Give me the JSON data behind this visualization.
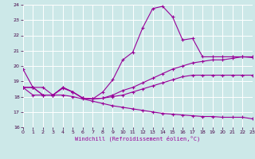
{
  "xlabel": "Windchill (Refroidissement éolien,°C)",
  "xlim": [
    0,
    23
  ],
  "ylim": [
    16,
    24
  ],
  "yticks": [
    16,
    17,
    18,
    19,
    20,
    21,
    22,
    23,
    24
  ],
  "xticks": [
    0,
    1,
    2,
    3,
    4,
    5,
    6,
    7,
    8,
    9,
    10,
    11,
    12,
    13,
    14,
    15,
    16,
    17,
    18,
    19,
    20,
    21,
    22,
    23
  ],
  "bg_color": "#cce8e8",
  "line_color": "#990099",
  "grid_color": "#ffffff",
  "line1_y": [
    19.8,
    18.6,
    18.6,
    18.1,
    18.6,
    18.3,
    17.9,
    17.85,
    18.3,
    19.1,
    20.4,
    20.9,
    22.5,
    23.75,
    23.9,
    23.2,
    21.7,
    21.8,
    20.6,
    20.6,
    20.6,
    20.6,
    20.6,
    20.6
  ],
  "line2_y": [
    18.6,
    18.6,
    18.1,
    18.1,
    18.6,
    18.3,
    17.9,
    17.85,
    17.9,
    18.1,
    18.4,
    18.6,
    18.9,
    19.2,
    19.5,
    19.8,
    20.0,
    20.2,
    20.3,
    20.4,
    20.4,
    20.5,
    20.6,
    20.55
  ],
  "line3_y": [
    18.6,
    18.6,
    18.1,
    18.1,
    18.55,
    18.3,
    17.9,
    17.85,
    17.9,
    18.0,
    18.1,
    18.3,
    18.5,
    18.7,
    18.9,
    19.1,
    19.3,
    19.4,
    19.4,
    19.4,
    19.4,
    19.4,
    19.4,
    19.4
  ],
  "line4_y": [
    18.6,
    18.1,
    18.1,
    18.1,
    18.1,
    18.0,
    17.85,
    17.7,
    17.55,
    17.4,
    17.3,
    17.2,
    17.1,
    17.0,
    16.9,
    16.85,
    16.8,
    16.75,
    16.7,
    16.7,
    16.65,
    16.65,
    16.65,
    16.55
  ]
}
